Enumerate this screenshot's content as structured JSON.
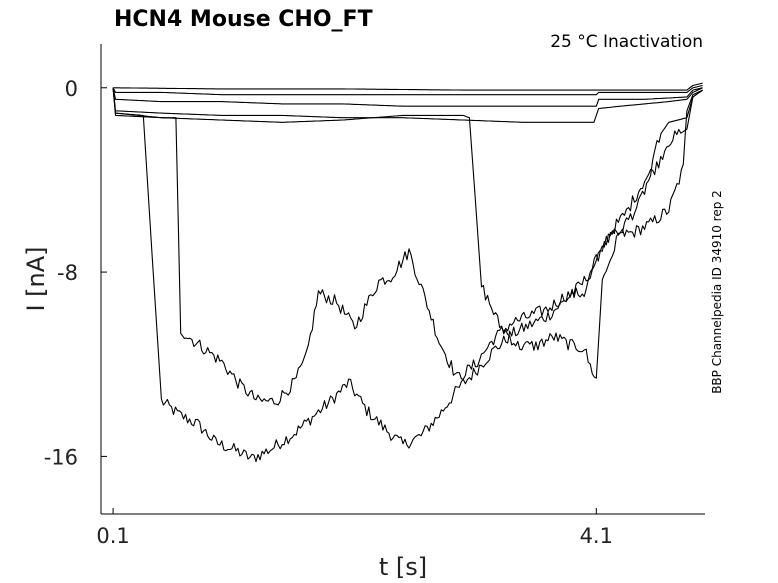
{
  "chart_data": {
    "type": "line",
    "title": "HCN4  Mouse  CHO_FT",
    "subtitle": "25 °C  Inactivation",
    "side_note": "BBP Channelpedia ID 34910 rep 2",
    "xlabel": "t [s]",
    "ylabel": "I [nA]",
    "xlim": [
      0.0,
      5.0
    ],
    "ylim": [
      -18.5,
      1.9
    ],
    "x_ticks": [
      0.1,
      4.1
    ],
    "x_tick_labels": [
      "0.1",
      "4.1"
    ],
    "y_ticks": [
      0,
      -8,
      -16
    ],
    "y_tick_labels": [
      "0",
      "-8",
      "-16"
    ],
    "grid": false,
    "legend": "none",
    "series": [
      {
        "x": [
          0.1,
          0.12,
          0.35,
          0.5,
          0.65,
          0.8,
          0.95,
          1.1,
          1.25,
          1.4,
          1.6,
          1.75,
          1.9,
          2.05,
          2.2,
          2.35,
          2.5,
          2.65,
          2.8,
          2.95,
          3.1,
          3.25,
          3.4,
          3.55,
          3.7,
          3.85,
          4.0,
          4.1,
          4.15,
          4.25,
          4.4,
          4.55,
          4.7,
          4.82,
          4.85,
          4.9,
          4.98
        ],
        "y": [
          0.0,
          -1.1,
          -1.2,
          -13.6,
          -14.2,
          -14.6,
          -15.4,
          -15.7,
          -16.1,
          -15.7,
          -15.0,
          -14.3,
          -13.6,
          -12.8,
          -14.0,
          -14.8,
          -15.5,
          -15.1,
          -14.2,
          -13.1,
          -12.3,
          -11.4,
          -10.7,
          -10.3,
          -9.9,
          -9.2,
          -8.4,
          -7.5,
          -6.8,
          -6.4,
          -6.3,
          -5.9,
          -5.3,
          -3.5,
          -1.0,
          -0.3,
          -0.1
        ]
      },
      {
        "x": [
          0.1,
          0.12,
          0.5,
          0.62,
          0.66,
          0.72,
          0.85,
          1.0,
          1.15,
          1.3,
          1.45,
          1.6,
          1.7,
          1.8,
          1.95,
          2.1,
          2.2,
          2.3,
          2.4,
          2.55,
          2.7,
          2.8,
          2.95,
          3.1,
          3.25,
          3.4,
          3.55,
          3.7,
          3.85,
          4.0,
          4.1,
          4.2,
          4.35,
          4.5,
          4.6,
          4.7,
          4.85,
          4.9,
          4.98
        ],
        "y": [
          0.0,
          -1.1,
          -1.3,
          -1.3,
          -10.5,
          -10.8,
          -11.3,
          -11.9,
          -12.9,
          -13.6,
          -13.6,
          -12.8,
          -11.7,
          -8.9,
          -9.3,
          -10.4,
          -9.4,
          -8.4,
          -8.2,
          -7.1,
          -9.4,
          -11.0,
          -12.6,
          -12.0,
          -10.9,
          -10.2,
          -9.9,
          -9.6,
          -9.0,
          -8.9,
          -7.6,
          -6.4,
          -5.4,
          -4.0,
          -3.4,
          -2.3,
          -1.8,
          -0.4,
          -0.1
        ]
      },
      {
        "x": [
          0.1,
          0.12,
          0.5,
          1.0,
          1.5,
          2.0,
          2.5,
          3.0,
          3.05,
          3.15,
          3.3,
          3.45,
          3.6,
          3.75,
          3.9,
          4.0,
          4.05,
          4.1,
          4.15,
          4.3,
          4.45,
          4.55,
          4.62,
          4.7,
          4.85,
          4.9,
          4.98
        ],
        "y": [
          0.0,
          -1.2,
          -1.3,
          -1.4,
          -1.5,
          -1.4,
          -1.2,
          -1.2,
          -1.3,
          -8.6,
          -10.3,
          -11.2,
          -11.2,
          -10.8,
          -11.2,
          -11.3,
          -12.1,
          -12.6,
          -8.4,
          -6.2,
          -5.1,
          -3.8,
          -2.1,
          -1.5,
          -1.3,
          -0.4,
          -0.1
        ]
      },
      {
        "x": [
          0.1,
          0.12,
          0.5,
          1.0,
          1.5,
          2.0,
          2.5,
          3.0,
          3.5,
          4.0,
          4.08,
          4.12,
          4.3,
          4.5,
          4.7,
          4.85,
          4.9,
          4.98
        ],
        "y": [
          0.0,
          -1.0,
          -1.1,
          -1.2,
          -1.2,
          -1.3,
          -1.3,
          -1.4,
          -1.5,
          -1.5,
          -1.5,
          -0.9,
          -0.8,
          -0.7,
          -0.6,
          -0.5,
          -0.2,
          0.0
        ]
      },
      {
        "x": [
          0.1,
          0.12,
          0.5,
          1.0,
          1.5,
          2.0,
          2.5,
          3.0,
          3.5,
          4.0,
          4.1,
          4.12,
          4.5,
          4.85,
          4.9,
          4.98
        ],
        "y": [
          0.0,
          -0.5,
          -0.6,
          -0.6,
          -0.7,
          -0.7,
          -0.8,
          -0.8,
          -0.8,
          -0.8,
          -0.8,
          -0.5,
          -0.5,
          -0.4,
          -0.1,
          0.0
        ]
      },
      {
        "x": [
          0.1,
          0.12,
          0.5,
          1.0,
          2.0,
          3.0,
          4.0,
          4.1,
          4.12,
          4.85,
          4.9,
          4.98
        ],
        "y": [
          0.0,
          -0.2,
          -0.2,
          -0.3,
          -0.3,
          -0.3,
          -0.3,
          -0.3,
          -0.2,
          -0.2,
          0.0,
          0.1
        ]
      },
      {
        "x": [
          0.1,
          1.0,
          2.0,
          3.0,
          4.1,
          4.85,
          4.9,
          4.98
        ],
        "y": [
          0.0,
          -0.05,
          -0.05,
          -0.1,
          -0.1,
          -0.1,
          0.1,
          0.2
        ]
      }
    ]
  }
}
